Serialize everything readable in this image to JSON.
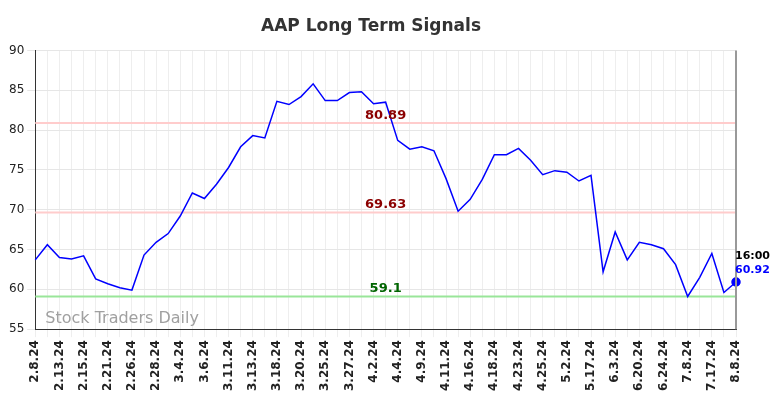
{
  "chart_data": {
    "type": "line",
    "title": "AAP Long Term Signals",
    "categories": [
      "2.8.24",
      null,
      "2.13.24",
      null,
      "2.15.24",
      null,
      "2.21.24",
      null,
      "2.26.24",
      null,
      "2.28.24",
      null,
      "3.4.24",
      null,
      "3.6.24",
      null,
      "3.11.24",
      null,
      "3.13.24",
      null,
      "3.18.24",
      null,
      "3.20.24",
      null,
      "3.25.24",
      null,
      "3.27.24",
      null,
      "4.2.24",
      null,
      "4.4.24",
      null,
      "4.9.24",
      null,
      "4.11.24",
      null,
      "4.16.24",
      null,
      "4.18.24",
      null,
      "4.23.24",
      null,
      "4.25.24",
      null,
      "5.2.24",
      null,
      "5.17.24",
      null,
      "6.3.24",
      null,
      "6.20.24",
      null,
      "6.24.24",
      null,
      "7.8.24",
      null,
      "7.17.24",
      null,
      "8.8.24"
    ],
    "values": [
      63.7,
      65.6,
      64.0,
      63.8,
      64.2,
      61.3,
      60.7,
      60.2,
      59.9,
      64.3,
      65.9,
      67.0,
      69.2,
      72.1,
      71.4,
      73.2,
      75.3,
      77.9,
      79.3,
      79.0,
      83.6,
      83.2,
      84.2,
      85.8,
      83.7,
      83.7,
      84.7,
      84.8,
      83.3,
      83.5,
      78.7,
      77.6,
      77.9,
      77.4,
      73.9,
      69.8,
      71.3,
      73.8,
      76.9,
      76.9,
      77.7,
      76.2,
      74.4,
      74.9,
      74.7,
      73.6,
      74.3,
      62.2,
      67.2,
      63.7,
      65.9,
      65.6,
      65.1,
      63.1,
      59.1,
      61.5,
      64.5,
      59.6,
      60.92
    ],
    "color": "#0000ff",
    "marker": "last",
    "ylim": [
      55,
      90
    ],
    "yticks": [
      55,
      60,
      65,
      70,
      75,
      80,
      85,
      90
    ],
    "grid": true,
    "levels": [
      {
        "value": 80.89,
        "label": "80.89",
        "color": "#ffcccc",
        "label_color": "#8b0000"
      },
      {
        "value": 69.63,
        "label": "69.63",
        "color": "#ffcccc",
        "label_color": "#8b0000"
      },
      {
        "value": 59.1,
        "label": "59.1",
        "color": "#99e699",
        "label_color": "#006400"
      }
    ],
    "last_time": "16:00",
    "watermark": "Stock Traders Daily"
  }
}
